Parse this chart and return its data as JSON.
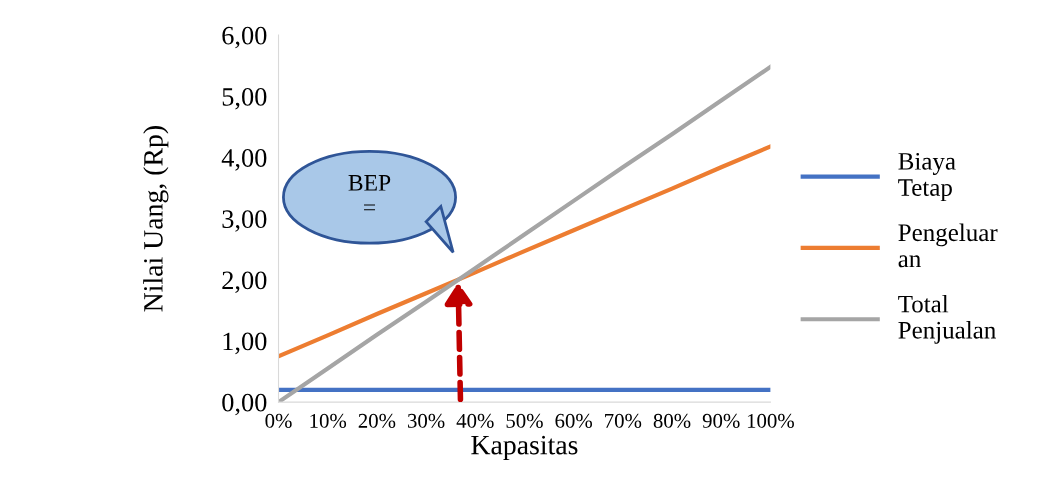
{
  "chart_data": {
    "type": "line",
    "xlabel": "Kapasitas",
    "ylabel": "Nilai Uang, (Rp)",
    "categories": [
      "0%",
      "10%",
      "20%",
      "30%",
      "40%",
      "50%",
      "60%",
      "70%",
      "80%",
      "90%",
      "100%"
    ],
    "series": [
      {
        "name": "Biaya\nTetap",
        "color": "#4472c4",
        "values": [
          0.2,
          0.2,
          0.2,
          0.2,
          0.2,
          0.2,
          0.2,
          0.2,
          0.2,
          0.2,
          0.2
        ]
      },
      {
        "name": "Pengeluar\nan",
        "color": "#ed7d31",
        "values": [
          0.75,
          1.09,
          1.44,
          1.78,
          2.12,
          2.47,
          2.81,
          3.15,
          3.49,
          3.84,
          4.18
        ]
      },
      {
        "name": "Total\nPenjualan",
        "color": "#a5a5a5",
        "values": [
          0,
          0.55,
          1.1,
          1.64,
          2.19,
          2.74,
          3.29,
          3.84,
          4.38,
          4.93,
          5.48
        ]
      }
    ],
    "ylim": [
      0,
      6
    ],
    "yticks": [
      {
        "value": 0,
        "label": "0,00"
      },
      {
        "value": 1,
        "label": "1,00"
      },
      {
        "value": 2,
        "label": "2,00"
      },
      {
        "value": 3,
        "label": "3,00"
      },
      {
        "value": 4,
        "label": "4,00"
      },
      {
        "value": 5,
        "label": "5,00"
      },
      {
        "value": 6,
        "label": "6,00"
      }
    ],
    "annotations": [
      "BEP\n="
    ],
    "legend": "right"
  }
}
